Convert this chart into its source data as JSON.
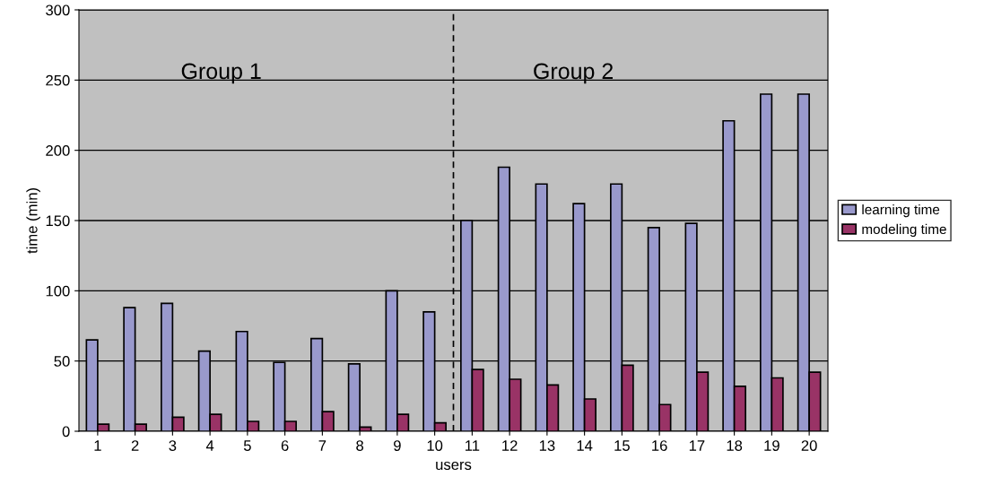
{
  "chart_data": {
    "type": "bar",
    "xlabel": "users",
    "ylabel": "time (min)",
    "categories": [
      "1",
      "2",
      "3",
      "4",
      "5",
      "6",
      "7",
      "8",
      "9",
      "10",
      "11",
      "12",
      "13",
      "14",
      "15",
      "16",
      "17",
      "18",
      "19",
      "20"
    ],
    "series": [
      {
        "name": "learning time",
        "color": "#9999cc",
        "values": [
          65,
          88,
          91,
          57,
          71,
          49,
          66,
          48,
          100,
          85,
          150,
          188,
          176,
          162,
          176,
          145,
          148,
          221,
          240,
          240
        ]
      },
      {
        "name": "modeling time",
        "color": "#993366",
        "values": [
          5,
          5,
          10,
          12,
          7,
          7,
          14,
          3,
          12,
          6,
          44,
          37,
          33,
          23,
          47,
          19,
          42,
          32,
          38,
          42
        ]
      }
    ],
    "ylim": [
      0,
      300
    ],
    "yticks": [
      0,
      50,
      100,
      150,
      200,
      250,
      300
    ],
    "grid": "y",
    "legend": "right",
    "annotations": [
      "Group 1",
      "Group 2"
    ]
  }
}
